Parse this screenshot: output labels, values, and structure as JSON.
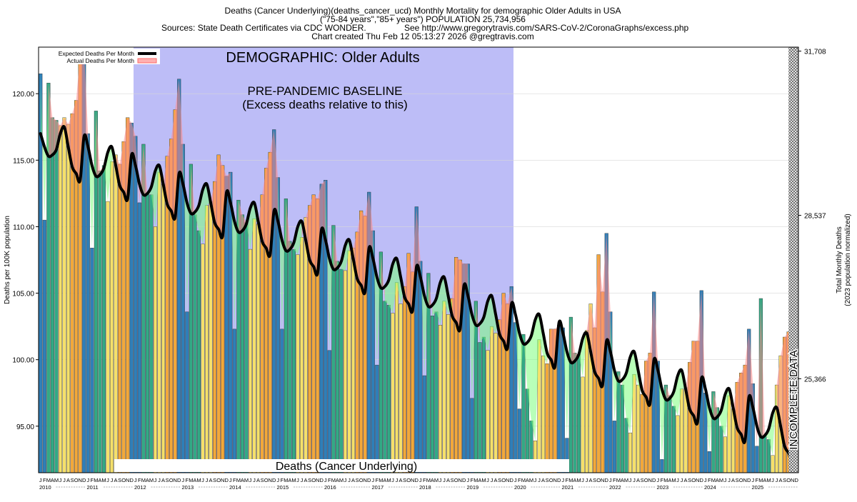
{
  "header": {
    "line1": "Deaths (Cancer Underlying)(deaths_cancer_ucd) Monthly Mortality for demographic Older Adults in USA",
    "line2": "(\"75-84 years\",\"85+ years\") POPULATION 25,734,956",
    "line3a": "Sources: State Death Certificates via CDC WONDER.",
    "line3b": "See http://www.gregorytravis.com/SARS-CoV-2/CoronaGraphs/excess.php",
    "line4": "Chart created Thu Feb 12 05:13:27 2026 @gregtravis.com"
  },
  "legend": {
    "expected": "Expected Deaths Per Month",
    "actual": "Actual Deaths Per Month"
  },
  "labels": {
    "demographic": "DEMOGRAPHIC: Older Adults",
    "baseline1": "PRE-PANDEMIC BASELINE",
    "baseline2": "(Excess deaths relative to this)",
    "incomplete": "INCOMPLETE DATA",
    "bottom_caption": "Deaths (Cancer Underlying)"
  },
  "axes": {
    "left_label": "Deaths per 100K population",
    "right_label_1": "Total Monthly Deaths",
    "right_label_2": "(2023 population normalized)",
    "left_ticks": [
      "95.00",
      "100.00",
      "105.00",
      "110.00",
      "115.00",
      "120.00"
    ],
    "right_ticks": [
      "25,366",
      "28,537",
      "31,708"
    ]
  },
  "colors": {
    "baseline_band": "#bdbdf7",
    "expected_line": "#000000",
    "excess_fill": "#ff8c8c",
    "deficit_fill": "#7dff7d",
    "winter_bar": "#2f7fb8",
    "spring_bar": "#33a985",
    "summer_bar": "#f5e06a",
    "fall_bar": "#f2a83a"
  },
  "chart_data": {
    "type": "bar",
    "title": "Deaths (Cancer Underlying)(deaths_cancer_ucd) Monthly Mortality for demographic Older Adults in USA",
    "xlabel": "",
    "ylabel": "Deaths per 100K population",
    "y2label": "Total Monthly Deaths (2023 population normalized)",
    "ylim": [
      91.5,
      123.5
    ],
    "y2_ticks": [
      {
        "value": 98.57,
        "label": "25,366"
      },
      {
        "value": 110.85,
        "label": "28,537"
      },
      {
        "value": 123.2,
        "label": "31,708"
      }
    ],
    "start": "2010-01",
    "baseline_period": [
      "2012-01",
      "2019-12"
    ],
    "incomplete_from": "2025-10",
    "month_letters": [
      "J",
      "F",
      "M",
      "A",
      "M",
      "J",
      "J",
      "A",
      "S",
      "O",
      "N",
      "D"
    ],
    "years": [
      "2010",
      "2011",
      "2012",
      "2013",
      "2014",
      "2015",
      "2016",
      "2017",
      "2018",
      "2019",
      "2020",
      "2021",
      "2022",
      "2023",
      "2024",
      "2025"
    ],
    "series": [
      {
        "name": "Actual Deaths Per Month",
        "values": [
          121.5,
          110.5,
          120.8,
          118.2,
          118.0,
          117.6,
          118.2,
          117.7,
          118.5,
          119.5,
          122.9,
          123.3,
          117.0,
          108.4,
          118.7,
          114.2,
          114.6,
          111.9,
          114.9,
          115.4,
          114.7,
          116.4,
          118.2,
          117.8,
          116.8,
          111.8,
          116.2,
          112.5,
          112.4,
          110.0,
          114.1,
          113.2,
          115.3,
          116.6,
          118.8,
          121.1,
          116.2,
          103.6,
          114.7,
          110.9,
          109.7,
          108.7,
          111.6,
          111.9,
          113.4,
          115.4,
          114.6,
          113.8,
          114.1,
          102.3,
          112.0,
          110.9,
          110.3,
          108.3,
          110.6,
          110.2,
          112.4,
          114.4,
          115.6,
          117.3,
          113.7,
          102.3,
          112.1,
          108.9,
          108.3,
          107.9,
          109.2,
          110.7,
          111.6,
          112.4,
          112.1,
          113.2,
          113.5,
          100.7,
          110.1,
          107.4,
          106.8,
          106.7,
          108.2,
          108.4,
          109.6,
          111.2,
          110.8,
          112.6,
          109.7,
          99.6,
          108.1,
          104.4,
          104.1,
          103.5,
          105.8,
          104.2,
          105.5,
          108.0,
          106.6,
          111.5,
          107.4,
          98.8,
          106.5,
          103.3,
          103.6,
          102.6,
          104.4,
          103.4,
          104.6,
          107.7,
          107.5,
          107.2,
          107.2,
          97.1,
          104.4,
          101.3,
          101.7,
          100.7,
          102.5,
          102.0,
          103.0,
          105.0,
          104.2,
          105.5,
          102.8,
          96.3,
          101.9,
          97.8,
          95.4,
          93.9,
          101.5,
          100.3,
          99.7,
          102.3,
          102.3,
          102.6,
          102.4,
          94.1,
          103.2,
          100.5,
          100.4,
          98.7,
          102.2,
          104.2,
          102.4,
          107.9,
          105.1,
          109.5,
          103.6,
          95.4,
          99.1,
          98.1,
          95.6,
          94.5,
          98.9,
          98.1,
          97.4,
          99.9,
          100.5,
          105.1,
          99.9,
          92.5,
          98.1,
          97.3,
          96.5,
          95.8,
          97.8,
          97.9,
          99.8,
          101.4,
          101.4,
          105.2,
          97.5,
          93.1,
          97.6,
          96.4,
          95.0,
          94.2,
          97.3,
          96.3,
          98.3,
          99.0,
          99.6,
          102.3,
          98.2,
          93.5,
          104.6,
          94.3,
          94.0,
          92.8,
          98.1,
          100.3,
          101.7,
          102.1,
          102.1,
          103.6
        ]
      },
      {
        "name": "Expected Deaths Per Month",
        "values": [
          117.0,
          116.0,
          115.3,
          115.4,
          115.8,
          117.0,
          117.5,
          116.0,
          114.5,
          114.0,
          113.5,
          116.8,
          116.0,
          114.6,
          113.8,
          113.9,
          114.4,
          115.6,
          116.0,
          114.6,
          113.1,
          112.6,
          112.1,
          115.4,
          114.6,
          113.2,
          112.4,
          112.5,
          113.0,
          114.2,
          114.6,
          113.2,
          111.7,
          111.2,
          110.7,
          114.0,
          113.2,
          111.8,
          111.0,
          111.1,
          111.6,
          112.8,
          113.2,
          111.8,
          110.3,
          109.8,
          109.3,
          112.6,
          111.8,
          110.4,
          109.6,
          109.7,
          110.2,
          111.4,
          111.8,
          110.4,
          108.9,
          108.4,
          107.9,
          111.2,
          110.4,
          109.0,
          108.2,
          108.3,
          108.8,
          110.0,
          110.4,
          109.0,
          107.5,
          107.0,
          106.5,
          109.8,
          109.0,
          107.6,
          106.8,
          106.9,
          107.4,
          108.6,
          109.0,
          107.6,
          106.1,
          105.6,
          105.1,
          108.4,
          107.6,
          106.2,
          105.4,
          105.5,
          106.0,
          107.2,
          107.6,
          106.2,
          104.7,
          104.2,
          103.7,
          107.0,
          106.2,
          104.8,
          104.0,
          104.1,
          104.6,
          105.8,
          106.2,
          104.8,
          103.3,
          102.8,
          102.3,
          105.6,
          104.8,
          103.4,
          102.6,
          102.7,
          103.2,
          104.4,
          104.8,
          103.4,
          101.9,
          101.4,
          100.9,
          104.2,
          103.4,
          102.0,
          101.2,
          101.3,
          101.8,
          103.0,
          103.4,
          102.0,
          100.5,
          100.0,
          99.5,
          102.8,
          102.0,
          100.6,
          99.8,
          99.9,
          100.4,
          101.6,
          102.0,
          100.6,
          99.1,
          98.6,
          98.1,
          101.4,
          100.6,
          99.2,
          98.4,
          98.5,
          99.0,
          100.2,
          100.6,
          99.2,
          97.7,
          97.2,
          96.7,
          100.0,
          99.2,
          97.8,
          97.0,
          97.1,
          97.6,
          98.8,
          99.2,
          97.8,
          96.3,
          95.8,
          95.3,
          98.6,
          97.8,
          96.4,
          95.6,
          95.7,
          96.2,
          97.4,
          97.8,
          96.4,
          94.9,
          94.4,
          93.9,
          97.2,
          96.4,
          95.0,
          94.2,
          94.3,
          94.8,
          96.0,
          96.4,
          95.0,
          93.5,
          93.0,
          92.5,
          95.8
        ]
      }
    ]
  }
}
